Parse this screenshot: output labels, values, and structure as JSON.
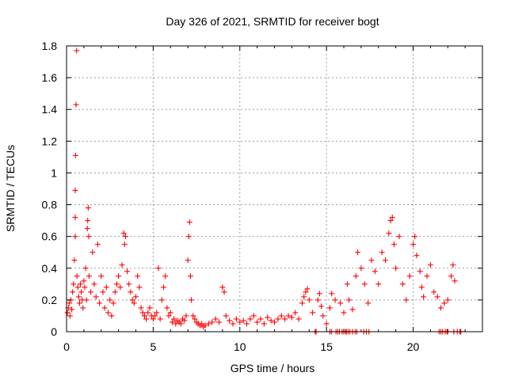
{
  "chart_data": {
    "type": "scatter",
    "title": "Day 326 of 2021, SRMTID for receiver bogt",
    "xlabel": "GPS time / hours",
    "ylabel": "SRMTID / TECUs",
    "xlim": [
      0,
      24
    ],
    "ylim": [
      0,
      1.8
    ],
    "xticks": [
      0,
      5,
      10,
      15,
      20
    ],
    "xtick_labels": [
      "0",
      "5",
      "10",
      "15",
      "20"
    ],
    "yticks": [
      0,
      0.2,
      0.4,
      0.6,
      0.8,
      1,
      1.2,
      1.4,
      1.6,
      1.8
    ],
    "ytick_labels": [
      "0",
      "0.2",
      "0.4",
      "0.6",
      "0.8",
      "1",
      "1.2",
      "1.4",
      "1.6",
      "1.8"
    ],
    "grid": true,
    "marker": "+",
    "color": "#ff0000",
    "series": [
      {
        "name": "SRMTID",
        "points": [
          [
            0.05,
            0.12
          ],
          [
            0.1,
            0.15
          ],
          [
            0.15,
            0.18
          ],
          [
            0.2,
            0.1
          ],
          [
            0.25,
            0.2
          ],
          [
            0.3,
            0.14
          ],
          [
            0.35,
            0.25
          ],
          [
            0.4,
            0.3
          ],
          [
            0.45,
            0.45
          ],
          [
            0.5,
            0.6
          ],
          [
            0.5,
            0.72
          ],
          [
            0.5,
            0.89
          ],
          [
            0.52,
            1.11
          ],
          [
            0.55,
            1.43
          ],
          [
            0.58,
            1.77
          ],
          [
            0.6,
            0.35
          ],
          [
            0.65,
            0.28
          ],
          [
            0.7,
            0.22
          ],
          [
            0.75,
            0.18
          ],
          [
            0.8,
            0.3
          ],
          [
            0.85,
            0.25
          ],
          [
            0.9,
            0.2
          ],
          [
            0.95,
            0.15
          ],
          [
            1.0,
            0.32
          ],
          [
            1.05,
            0.28
          ],
          [
            1.1,
            0.4
          ],
          [
            1.15,
            0.2
          ],
          [
            1.2,
            0.65
          ],
          [
            1.22,
            0.7
          ],
          [
            1.25,
            0.78
          ],
          [
            1.28,
            0.6
          ],
          [
            1.3,
            0.35
          ],
          [
            1.4,
            0.25
          ],
          [
            1.5,
            0.5
          ],
          [
            1.6,
            0.3
          ],
          [
            1.7,
            0.22
          ],
          [
            1.8,
            0.55
          ],
          [
            1.9,
            0.18
          ],
          [
            2.0,
            0.35
          ],
          [
            2.1,
            0.25
          ],
          [
            2.2,
            0.15
          ],
          [
            2.3,
            0.28
          ],
          [
            2.4,
            0.12
          ],
          [
            2.5,
            0.2
          ],
          [
            2.6,
            0.1
          ],
          [
            2.7,
            0.18
          ],
          [
            2.8,
            0.25
          ],
          [
            2.9,
            0.3
          ],
          [
            3.0,
            0.35
          ],
          [
            3.1,
            0.28
          ],
          [
            3.2,
            0.42
          ],
          [
            3.3,
            0.62
          ],
          [
            3.35,
            0.55
          ],
          [
            3.4,
            0.6
          ],
          [
            3.5,
            0.38
          ],
          [
            3.6,
            0.3
          ],
          [
            3.7,
            0.25
          ],
          [
            3.8,
            0.2
          ],
          [
            3.9,
            0.18
          ],
          [
            4.0,
            0.22
          ],
          [
            4.1,
            0.35
          ],
          [
            4.2,
            0.28
          ],
          [
            4.3,
            0.15
          ],
          [
            4.4,
            0.12
          ],
          [
            4.5,
            0.1
          ],
          [
            4.6,
            0.08
          ],
          [
            4.7,
            0.12
          ],
          [
            4.8,
            0.15
          ],
          [
            4.9,
            0.1
          ],
          [
            5.0,
            0.08
          ],
          [
            5.1,
            0.1
          ],
          [
            5.2,
            0.12
          ],
          [
            5.3,
            0.4
          ],
          [
            5.4,
            0.08
          ],
          [
            5.5,
            0.2
          ],
          [
            5.6,
            0.28
          ],
          [
            5.7,
            0.35
          ],
          [
            5.8,
            0.15
          ],
          [
            5.9,
            0.1
          ],
          [
            6.0,
            0.12
          ],
          [
            6.1,
            0.06
          ],
          [
            6.2,
            0.08
          ],
          [
            6.3,
            0.05
          ],
          [
            6.4,
            0.07
          ],
          [
            6.5,
            0.06
          ],
          [
            6.6,
            0.05
          ],
          [
            6.7,
            0.08
          ],
          [
            6.8,
            0.07
          ],
          [
            6.9,
            0.1
          ],
          [
            7.0,
            0.45
          ],
          [
            7.05,
            0.6
          ],
          [
            7.1,
            0.69
          ],
          [
            7.15,
            0.35
          ],
          [
            7.2,
            0.2
          ],
          [
            7.3,
            0.1
          ],
          [
            7.4,
            0.08
          ],
          [
            7.5,
            0.06
          ],
          [
            7.6,
            0.05
          ],
          [
            7.7,
            0.04
          ],
          [
            7.8,
            0.05
          ],
          [
            7.9,
            0.03
          ],
          [
            8.0,
            0.04
          ],
          [
            8.2,
            0.05
          ],
          [
            8.4,
            0.06
          ],
          [
            8.6,
            0.08
          ],
          [
            8.8,
            0.06
          ],
          [
            9.0,
            0.28
          ],
          [
            9.1,
            0.25
          ],
          [
            9.2,
            0.1
          ],
          [
            9.4,
            0.07
          ],
          [
            9.6,
            0.05
          ],
          [
            9.8,
            0.08
          ],
          [
            10.0,
            0.06
          ],
          [
            10.2,
            0.07
          ],
          [
            10.4,
            0.05
          ],
          [
            10.6,
            0.08
          ],
          [
            10.8,
            0.1
          ],
          [
            11.0,
            0.06
          ],
          [
            11.2,
            0.08
          ],
          [
            11.4,
            0.05
          ],
          [
            11.6,
            0.09
          ],
          [
            11.8,
            0.07
          ],
          [
            12.0,
            0.06
          ],
          [
            12.2,
            0.08
          ],
          [
            12.4,
            0.1
          ],
          [
            12.6,
            0.08
          ],
          [
            12.8,
            0.1
          ],
          [
            13.0,
            0.09
          ],
          [
            13.2,
            0.12
          ],
          [
            13.4,
            0.08
          ],
          [
            13.6,
            0.18
          ],
          [
            13.7,
            0.22
          ],
          [
            13.8,
            0.25
          ],
          [
            13.9,
            0.27
          ],
          [
            14.0,
            0.2
          ],
          [
            14.2,
            0.12
          ],
          [
            14.5,
            0.2
          ],
          [
            14.6,
            0.24
          ],
          [
            14.7,
            0.16
          ],
          [
            14.8,
            0.1
          ],
          [
            15.0,
            0.05
          ],
          [
            15.2,
            0.15
          ],
          [
            15.3,
            0.24
          ],
          [
            15.5,
            0.2
          ],
          [
            15.8,
            0.18
          ],
          [
            16.0,
            0.12
          ],
          [
            16.2,
            0.3
          ],
          [
            16.3,
            0.2
          ],
          [
            16.5,
            0.14
          ],
          [
            16.7,
            0.35
          ],
          [
            16.8,
            0.5
          ],
          [
            17.0,
            0.4
          ],
          [
            17.2,
            0.3
          ],
          [
            17.4,
            0.18
          ],
          [
            17.6,
            0.45
          ],
          [
            17.8,
            0.38
          ],
          [
            18.0,
            0.3
          ],
          [
            18.2,
            0.5
          ],
          [
            18.4,
            0.45
          ],
          [
            18.6,
            0.62
          ],
          [
            18.7,
            0.7
          ],
          [
            18.8,
            0.72
          ],
          [
            18.9,
            0.55
          ],
          [
            19.0,
            0.4
          ],
          [
            19.2,
            0.6
          ],
          [
            19.4,
            0.3
          ],
          [
            19.6,
            0.2
          ],
          [
            19.8,
            0.35
          ],
          [
            20.0,
            0.55
          ],
          [
            20.1,
            0.6
          ],
          [
            20.2,
            0.48
          ],
          [
            20.4,
            0.38
          ],
          [
            20.5,
            0.28
          ],
          [
            20.6,
            0.22
          ],
          [
            20.8,
            0.35
          ],
          [
            21.0,
            0.42
          ],
          [
            21.2,
            0.25
          ],
          [
            21.4,
            0.22
          ],
          [
            21.6,
            0.15
          ],
          [
            21.8,
            0.18
          ],
          [
            22.0,
            0.2
          ],
          [
            22.2,
            0.35
          ],
          [
            22.3,
            0.42
          ],
          [
            22.4,
            0.32
          ]
        ],
        "zero_points_x": [
          14.35,
          14.4,
          15.2,
          15.3,
          15.55,
          15.65,
          15.75,
          15.9,
          16.0,
          16.1,
          16.15,
          16.25,
          16.35,
          16.5,
          16.65,
          16.75,
          17.15,
          17.3,
          17.45,
          21.5,
          21.6,
          21.7,
          21.85,
          21.95,
          22.0,
          22.35,
          22.55,
          22.7,
          22.75
        ]
      }
    ]
  }
}
